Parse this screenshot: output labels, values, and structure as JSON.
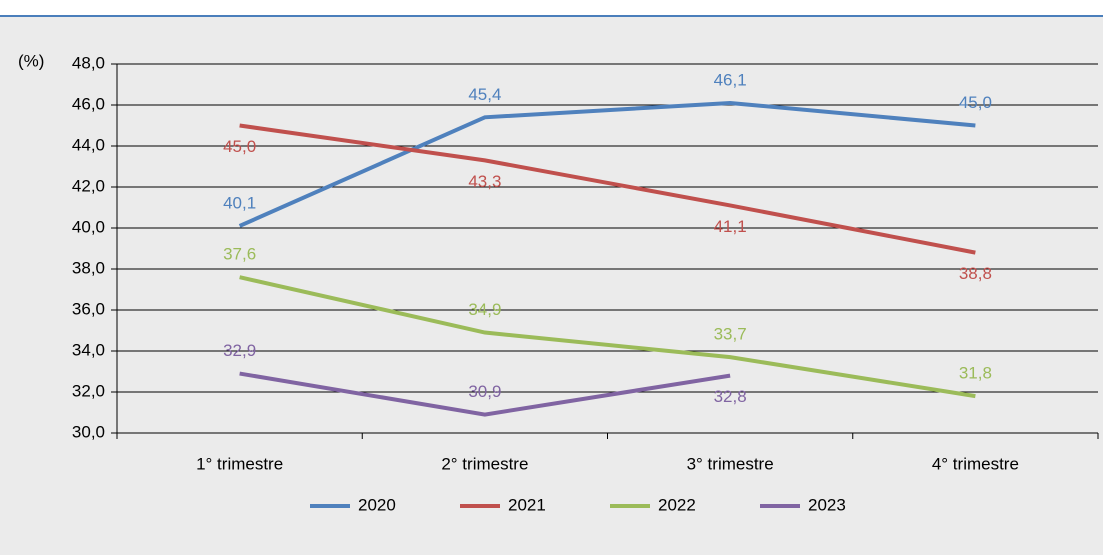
{
  "chart_data": {
    "type": "line",
    "y_unit": "(%)",
    "categories": [
      "1° trimestre",
      "2° trimestre",
      "3° trimestre",
      "4° trimestre"
    ],
    "series": [
      {
        "name": "2020",
        "color": "#4f81bd",
        "values": [
          40.1,
          45.4,
          46.1,
          45.0
        ],
        "value_labels": [
          "40,1",
          "45,4",
          "46,1",
          "45,0"
        ]
      },
      {
        "name": "2021",
        "color": "#c0504d",
        "values": [
          45.0,
          43.3,
          41.1,
          38.8
        ],
        "value_labels": [
          "45,0",
          "43,3",
          "41,1",
          "38,8"
        ]
      },
      {
        "name": "2022",
        "color": "#9bbb59",
        "values": [
          37.6,
          34.9,
          33.7,
          31.8
        ],
        "value_labels": [
          "37,6",
          "34,9",
          "33,7",
          "31,8"
        ]
      },
      {
        "name": "2023",
        "color": "#8064a2",
        "values": [
          32.9,
          30.9,
          32.8,
          null
        ],
        "value_labels": [
          "32,9",
          "30,9",
          "32,8",
          null
        ]
      }
    ],
    "ylim": [
      30,
      48
    ],
    "yticks": [
      {
        "value": 30,
        "label": "30,0"
      },
      {
        "value": 32,
        "label": "32,0"
      },
      {
        "value": 34,
        "label": "34,0"
      },
      {
        "value": 36,
        "label": "36,0"
      },
      {
        "value": 38,
        "label": "38,0"
      },
      {
        "value": 40,
        "label": "40,0"
      },
      {
        "value": 42,
        "label": "42,0"
      },
      {
        "value": 44,
        "label": "44,0"
      },
      {
        "value": 46,
        "label": "46,0"
      },
      {
        "value": 48,
        "label": "48,0"
      }
    ],
    "grid": true,
    "legend": "bottom"
  }
}
